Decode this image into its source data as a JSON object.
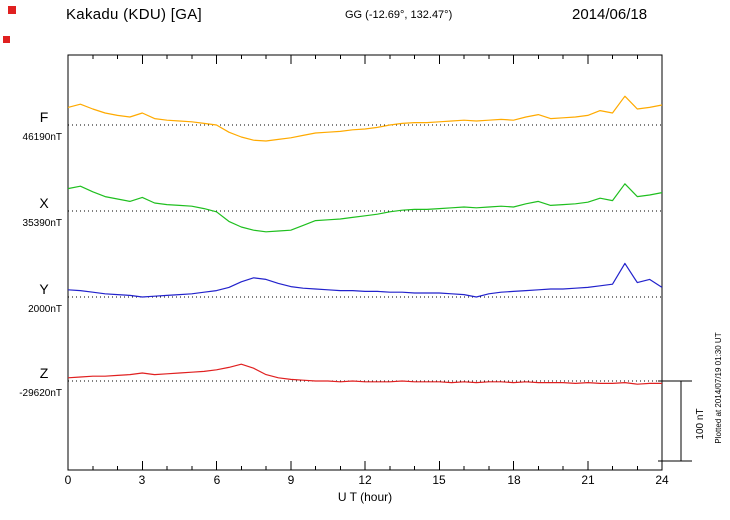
{
  "header": {
    "title": "Kakadu (KDU)  [GA]",
    "coordinates": "GG (-12.69°, 132.47°)",
    "date": "2014/06/18"
  },
  "footer": {
    "xlabel": "U T (hour)",
    "plotted_at": "Plotted at 2014/07/19 01:30 UT"
  },
  "scale_bar_label": "100 nT",
  "chart_data": {
    "type": "line",
    "title": "Kakadu (KDU) [GA] magnetogram",
    "x_range": [
      0,
      24
    ],
    "x_step_hours": 0.5,
    "x_ticks": [
      0,
      3,
      6,
      9,
      12,
      15,
      18,
      21,
      24
    ],
    "xlabel": "U T (hour)",
    "grid": "dotted horizontal baseline per component",
    "legend_position": "left",
    "scale_bar": {
      "label": "100 nT",
      "nanotesla": 100
    },
    "series": [
      {
        "name": "F",
        "baseline_label": "46190nT",
        "baseline_nT": 46190,
        "color": "#ffaa00",
        "values_nT_rel": [
          22,
          26,
          20,
          15,
          12,
          10,
          15,
          8,
          6,
          5,
          4,
          2,
          0,
          -9,
          -15,
          -19,
          -20,
          -18,
          -16,
          -13,
          -10,
          -9,
          -8,
          -6,
          -5,
          -3,
          0,
          2,
          3,
          3,
          4,
          5,
          6,
          5,
          6,
          7,
          6,
          10,
          13,
          8,
          9,
          10,
          12,
          18,
          15,
          36,
          20,
          22,
          25
        ]
      },
      {
        "name": "X",
        "baseline_label": "35390nT",
        "baseline_nT": 35390,
        "color": "#1fbf1f",
        "values_nT_rel": [
          28,
          31,
          24,
          18,
          15,
          12,
          17,
          10,
          8,
          7,
          6,
          3,
          -1,
          -13,
          -20,
          -24,
          -26,
          -25,
          -24,
          -18,
          -12,
          -11,
          -10,
          -8,
          -6,
          -4,
          -1,
          1,
          2,
          2,
          3,
          4,
          5,
          4,
          5,
          6,
          5,
          9,
          12,
          7,
          8,
          9,
          11,
          16,
          13,
          34,
          18,
          20,
          23
        ]
      },
      {
        "name": "Y",
        "baseline_label": "2000nT",
        "baseline_nT": 2000,
        "color": "#2222cc",
        "values_nT_rel": [
          9,
          8,
          6,
          4,
          3,
          2,
          0,
          1,
          2,
          3,
          4,
          6,
          8,
          12,
          19,
          24,
          22,
          17,
          13,
          11,
          10,
          9,
          8,
          8,
          7,
          7,
          6,
          6,
          5,
          5,
          5,
          4,
          3,
          0,
          4,
          6,
          7,
          8,
          9,
          10,
          10,
          11,
          12,
          14,
          16,
          42,
          18,
          22,
          12
        ]
      },
      {
        "name": "Z",
        "baseline_label": "-29620nT",
        "baseline_nT": -29620,
        "color": "#e02020",
        "values_nT_rel": [
          4,
          5,
          6,
          6,
          7,
          8,
          10,
          8,
          9,
          10,
          11,
          12,
          14,
          17,
          21,
          16,
          8,
          4,
          2,
          1,
          0,
          0,
          -1,
          0,
          -1,
          -1,
          -1,
          0,
          -1,
          -1,
          -1,
          -2,
          -1,
          -2,
          -1,
          -1,
          -2,
          -1,
          -2,
          -2,
          -2,
          -3,
          -2,
          -3,
          -3,
          -2,
          -4,
          -3,
          -3
        ]
      }
    ]
  }
}
